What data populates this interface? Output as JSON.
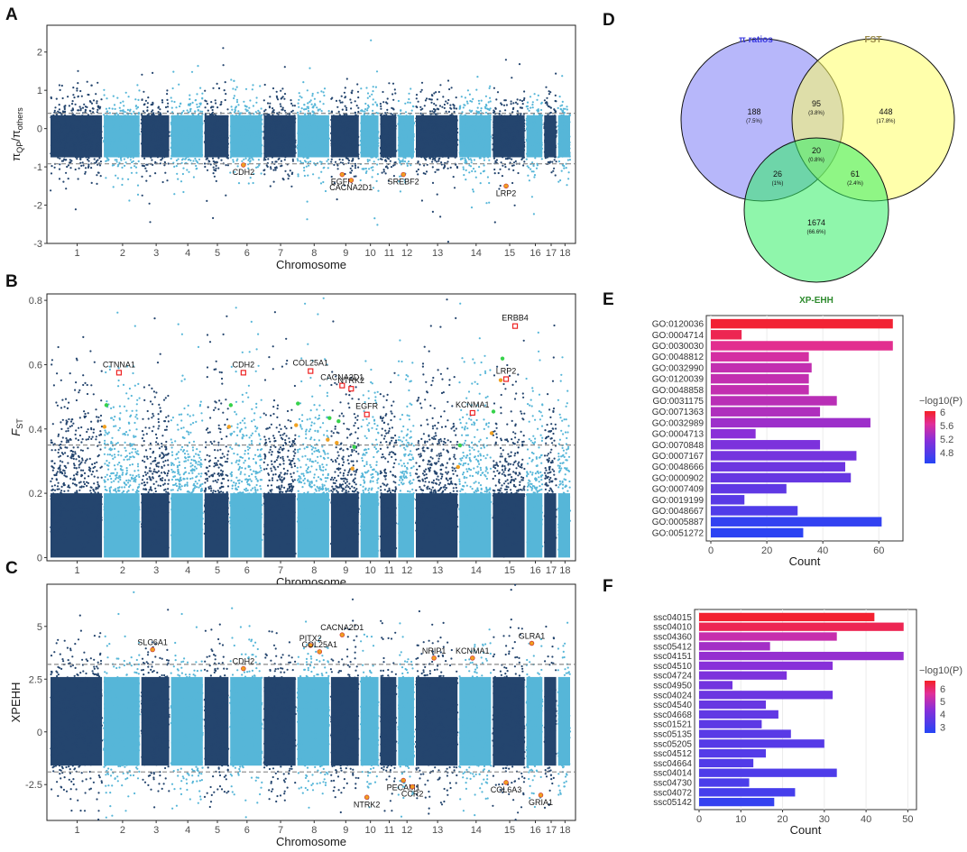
{
  "panels": {
    "A": "A",
    "B": "B",
    "C": "C",
    "D": "D",
    "E": "E",
    "F": "F"
  },
  "chart_data": [
    {
      "id": "A",
      "type": "scatter",
      "subtype": "manhattan",
      "xlabel": "Chromosome",
      "ylabel": "πQP/πothers",
      "ylabel_main": "π",
      "ylabel_sub1": "QP",
      "ylabel_mid": "/π",
      "ylabel_sub2": "others",
      "ylim": [
        -3,
        2.7
      ],
      "yticks": [
        -3,
        -2,
        -1,
        0,
        1,
        2
      ],
      "chromosomes": [
        "1",
        "2",
        "3",
        "4",
        "5",
        "6",
        "7",
        "8",
        "9",
        "10",
        "11",
        "12",
        "13",
        "14",
        "15",
        "16",
        "17",
        "18"
      ],
      "center_mean": -0.12,
      "spread": 0.55,
      "thresholds": [
        0.4,
        -0.92
      ],
      "genes": [
        {
          "name": "CDH2",
          "chr": "6",
          "y": -0.95
        },
        {
          "name": "EGFR",
          "chr": "9",
          "y": -1.2
        },
        {
          "name": "CACNA2D1",
          "chr": "9",
          "y": -1.35
        },
        {
          "name": "SREBF2",
          "chr": "12",
          "y": -1.2
        },
        {
          "name": "LRP2",
          "chr": "15",
          "y": -1.5
        }
      ]
    },
    {
      "id": "B",
      "type": "scatter",
      "subtype": "manhattan",
      "xlabel": "Chromosome",
      "ylabel": "FST",
      "ylabel_main": "F",
      "ylabel_sub1": "ST",
      "ylim": [
        -0.01,
        0.82
      ],
      "yticks": [
        0.0,
        0.2,
        0.4,
        0.6,
        0.8
      ],
      "chromosomes": [
        "1",
        "2",
        "3",
        "4",
        "5",
        "6",
        "7",
        "8",
        "9",
        "10",
        "11",
        "12",
        "13",
        "14",
        "15",
        "16",
        "17",
        "18"
      ],
      "threshold": 0.35,
      "genes": [
        {
          "name": "CTNNA1",
          "chr": "2",
          "y": 0.575
        },
        {
          "name": "CDH2",
          "chr": "6",
          "y": 0.575
        },
        {
          "name": "COL25A1",
          "chr": "8",
          "y": 0.58
        },
        {
          "name": "CACNA2D1",
          "chr": "9",
          "y": 0.535
        },
        {
          "name": "NTRK2",
          "chr": "9",
          "y": 0.525
        },
        {
          "name": "EGFR",
          "chr": "10",
          "y": 0.445
        },
        {
          "name": "KCNMA1",
          "chr": "14",
          "y": 0.45
        },
        {
          "name": "LRP2",
          "chr": "15",
          "y": 0.555
        },
        {
          "name": "ERBB4",
          "chr": "15",
          "y": 0.72
        }
      ]
    },
    {
      "id": "C",
      "type": "scatter",
      "subtype": "manhattan",
      "xlabel": "Chromosome",
      "ylabel": "XPEHH",
      "ylim": [
        -4.2,
        7.0
      ],
      "yticks": [
        -2.5,
        0.0,
        2.5,
        5.0
      ],
      "chromosomes": [
        "1",
        "2",
        "3",
        "4",
        "5",
        "6",
        "7",
        "8",
        "9",
        "10",
        "11",
        "12",
        "13",
        "14",
        "15",
        "16",
        "17",
        "18"
      ],
      "thresholds": [
        3.2,
        -1.9
      ],
      "genes": [
        {
          "name": "SLC6A1",
          "chr": "3",
          "y": 3.9
        },
        {
          "name": "CDH2",
          "chr": "6",
          "y": 3.0
        },
        {
          "name": "PITX2",
          "chr": "8",
          "y": 4.1
        },
        {
          "name": "COL25A1",
          "chr": "8",
          "y": 3.8
        },
        {
          "name": "CACNA2D1",
          "chr": "9",
          "y": 4.6
        },
        {
          "name": "NRIP1",
          "chr": "13",
          "y": 3.5
        },
        {
          "name": "KCNMA1",
          "chr": "14",
          "y": 3.5
        },
        {
          "name": "GLRA1",
          "chr": "16",
          "y": 4.2
        },
        {
          "name": "NTRK2",
          "chr": "10",
          "y": -3.1
        },
        {
          "name": "PECAM1",
          "chr": "12",
          "y": -2.3
        },
        {
          "name": "CCR2",
          "chr": "12",
          "y": -2.6
        },
        {
          "name": "COL6A3",
          "chr": "15",
          "y": -2.4
        },
        {
          "name": "GRIA1",
          "chr": "16",
          "y": -3.0
        }
      ]
    },
    {
      "id": "D",
      "type": "venn",
      "sets": [
        {
          "name": "π ratios",
          "color": "#3a3ae0",
          "fill": "#7b7bf5"
        },
        {
          "name": "FST",
          "color": "#9a8a4a",
          "fill": "#ffff66"
        },
        {
          "name": "XP-EHH",
          "color": "#2e8b2e",
          "fill": "#33ee66"
        }
      ],
      "regions": [
        {
          "id": "pi_only",
          "count": "188",
          "pct": "(7.5%)"
        },
        {
          "id": "pi_fst",
          "count": "95",
          "pct": "(3.8%)"
        },
        {
          "id": "fst_only",
          "count": "448",
          "pct": "(17.8%)"
        },
        {
          "id": "all",
          "count": "20",
          "pct": "(0.8%)"
        },
        {
          "id": "pi_xp",
          "count": "26",
          "pct": "(1%)"
        },
        {
          "id": "fst_xp",
          "count": "61",
          "pct": "(2.4%)"
        },
        {
          "id": "xp_only",
          "count": "1674",
          "pct": "(66.6%)"
        }
      ]
    },
    {
      "id": "E",
      "type": "bar",
      "orientation": "horizontal",
      "xlabel": "Count",
      "xlim": [
        0,
        67
      ],
      "xticks": [
        0,
        20,
        40,
        60
      ],
      "legend_title": "−log10(P)",
      "legend_ticks": [
        6.0,
        5.6,
        5.2,
        4.8
      ],
      "color_range": [
        4.5,
        6.05
      ],
      "categories": [
        "GO:0120036",
        "GO:0004714",
        "GO:0030030",
        "GO:0048812",
        "GO:0032990",
        "GO:0120039",
        "GO:0048858",
        "GO:0031175",
        "GO:0071363",
        "GO:0032989",
        "GO:0004713",
        "GO:0070848",
        "GO:0007167",
        "GO:0048666",
        "GO:0000902",
        "GO:0007409",
        "GO:0019199",
        "GO:0048667",
        "GO:0005887",
        "GO:0051272"
      ],
      "values": [
        65,
        11,
        65,
        35,
        36,
        35,
        35,
        45,
        39,
        57,
        16,
        39,
        52,
        48,
        50,
        27,
        12,
        31,
        61,
        33
      ],
      "neglog10p": [
        6.0,
        5.9,
        5.7,
        5.6,
        5.5,
        5.5,
        5.5,
        5.45,
        5.4,
        5.3,
        5.2,
        5.1,
        5.05,
        5.0,
        4.95,
        4.9,
        4.85,
        4.8,
        4.6,
        4.55
      ]
    },
    {
      "id": "F",
      "type": "bar",
      "orientation": "horizontal",
      "xlabel": "Count",
      "xlim": [
        0,
        51
      ],
      "xticks": [
        0,
        10,
        20,
        30,
        40,
        50
      ],
      "legend_title": "−log10(P)",
      "legend_ticks": [
        6,
        5,
        4,
        3
      ],
      "color_range": [
        2.6,
        6.7
      ],
      "categories": [
        "ssc04015",
        "ssc04010",
        "ssc04360",
        "ssc05412",
        "ssc04151",
        "ssc04510",
        "ssc04724",
        "ssc04950",
        "ssc04024",
        "ssc04540",
        "ssc04668",
        "ssc01521",
        "ssc05135",
        "ssc05205",
        "ssc04512",
        "ssc04664",
        "ssc04014",
        "ssc04730",
        "ssc04072",
        "ssc05142"
      ],
      "values": [
        42,
        49,
        33,
        17,
        49,
        32,
        21,
        8,
        32,
        16,
        19,
        15,
        22,
        30,
        16,
        13,
        33,
        12,
        23,
        18
      ],
      "neglog10p": [
        6.6,
        6.3,
        5.3,
        4.8,
        4.6,
        4.4,
        4.2,
        4.0,
        3.9,
        3.8,
        3.7,
        3.6,
        3.55,
        3.5,
        3.45,
        3.4,
        3.35,
        3.3,
        3.2,
        2.9
      ]
    }
  ]
}
